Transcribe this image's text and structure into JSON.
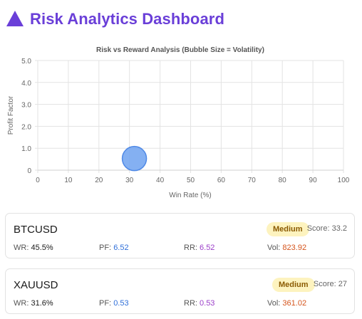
{
  "header": {
    "title": "Risk Analytics Dashboard",
    "icon": "triangle-icon",
    "accent": "#6a3fd8"
  },
  "chart_data": {
    "type": "scatter",
    "title": "Risk vs Reward Analysis (Bubble Size = Volatility)",
    "xlabel": "Win Rate (%)",
    "ylabel": "Profit Factor",
    "xlim": [
      0,
      100
    ],
    "ylim": [
      0,
      5
    ],
    "x_ticks": [
      "0",
      "10",
      "20",
      "30",
      "40",
      "50",
      "60",
      "70",
      "80",
      "90",
      "100"
    ],
    "y_ticks": [
      "0",
      "1.0",
      "2.0",
      "3.0",
      "4.0",
      "5.0"
    ],
    "grid": true,
    "bubble_color": "#6fa2f0",
    "points": [
      {
        "x": 31.6,
        "y": 0.53,
        "volatility": 361.02
      }
    ]
  },
  "assets": [
    {
      "symbol": "BTCUSD",
      "risk": "Medium",
      "score_label": "Score:",
      "score": "33.2",
      "wr_label": "WR:",
      "wr": "45.5%",
      "pf_label": "PF:",
      "pf": "6.52",
      "rr_label": "RR:",
      "rr": "6.52",
      "vol_label": "Vol:",
      "vol": "823.92"
    },
    {
      "symbol": "XAUUSD",
      "risk": "Medium",
      "score_label": "Score:",
      "score": "27",
      "wr_label": "WR:",
      "wr": "31.6%",
      "pf_label": "PF:",
      "pf": "0.53",
      "rr_label": "RR:",
      "rr": "0.53",
      "vol_label": "Vol:",
      "vol": "361.02"
    }
  ]
}
